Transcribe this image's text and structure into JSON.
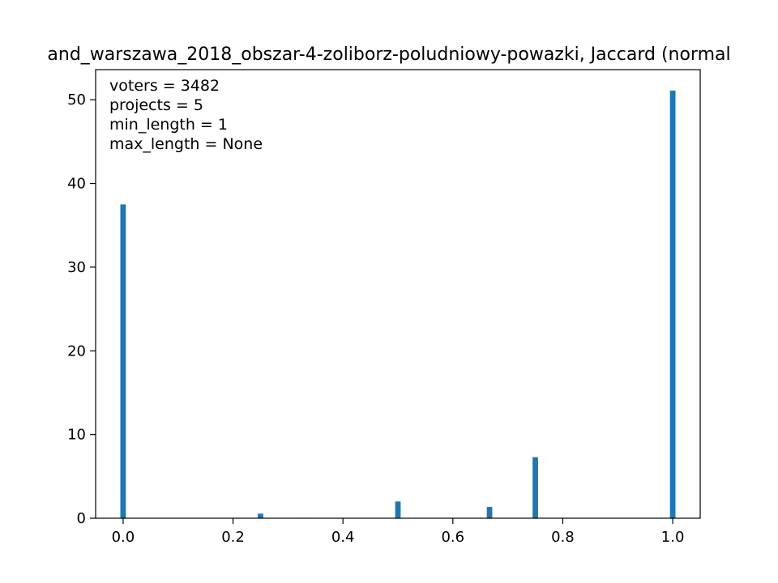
{
  "chart_data": {
    "type": "bar",
    "title": "and_warszawa_2018_obszar-4-zoliborz-poludniowy-powazki, Jaccard (normal",
    "xlabel": "",
    "ylabel": "",
    "xlim": [
      -0.05,
      1.05
    ],
    "ylim": [
      0,
      53.6
    ],
    "bin_width": 0.01,
    "x": [
      0.0,
      0.25,
      0.3333,
      0.5,
      0.6667,
      0.75,
      1.0
    ],
    "values": [
      37.5,
      0.55,
      0.05,
      2.0,
      1.35,
      7.3,
      51.1
    ],
    "bar_color": "#1f77b4",
    "x_ticks": [
      0.0,
      0.2,
      0.4,
      0.6,
      0.8,
      1.0
    ],
    "x_tick_labels": [
      "0.0",
      "0.2",
      "0.4",
      "0.6",
      "0.8",
      "1.0"
    ],
    "y_ticks": [
      0,
      10,
      20,
      30,
      40,
      50
    ],
    "y_tick_labels": [
      "0",
      "10",
      "20",
      "30",
      "40",
      "50"
    ],
    "grid": false,
    "annotations": [
      "voters = 3482",
      "projects = 5",
      "min_length = 1",
      "max_length = None"
    ]
  }
}
